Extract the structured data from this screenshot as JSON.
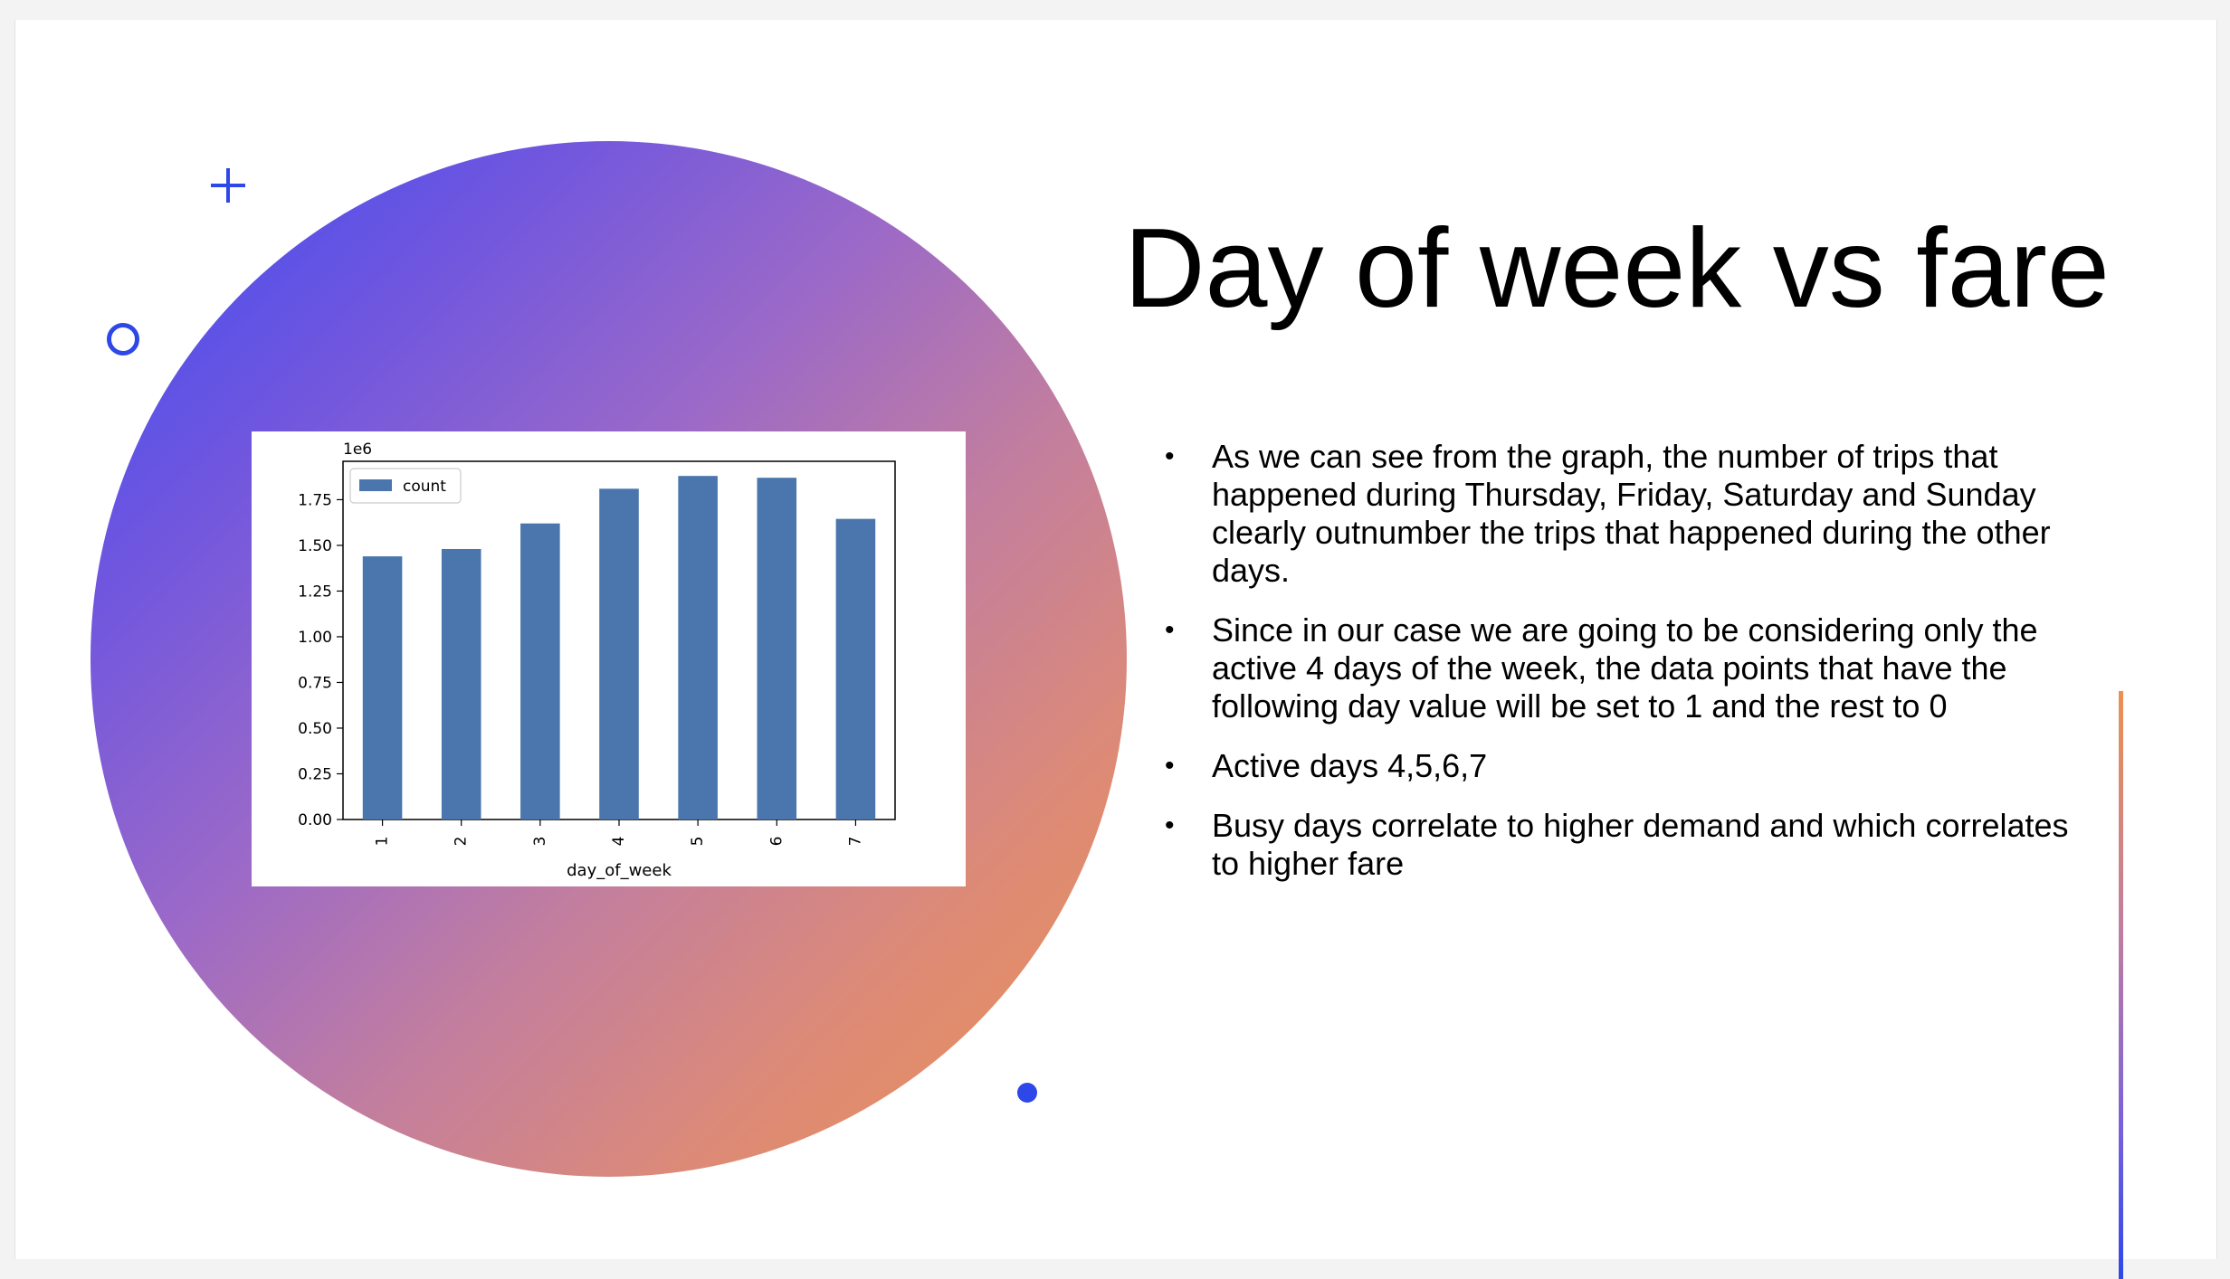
{
  "slide": {
    "title": "Day of week vs fare",
    "bullets": [
      "As we can see from the graph, the number of trips that happened during Thursday, Friday, Saturday and Sunday clearly outnumber the trips that happened during the other days.",
      "Since in our case we are going to be considering only the active 4 days of the week, the data points that have the following day value will be set to 1 and the rest to 0",
      "Active days 4,5,6,7",
      "Busy days correlate to higher demand and which correlates to higher fare"
    ],
    "bullet_glyph": "•"
  },
  "colors": {
    "accent_blue": "#2d47e8",
    "gradient_start": "#3b4cf2",
    "gradient_end": "#ec9050",
    "bar": "#4a76ad"
  },
  "chart_data": {
    "type": "bar",
    "categories": [
      "1",
      "2",
      "3",
      "4",
      "5",
      "6",
      "7"
    ],
    "values": [
      1.44,
      1.48,
      1.62,
      1.81,
      1.88,
      1.87,
      1.645
    ],
    "series": [
      {
        "name": "count",
        "values": [
          1.44,
          1.48,
          1.62,
          1.81,
          1.88,
          1.87,
          1.645
        ]
      }
    ],
    "scale_label": "1e6",
    "xlabel": "day_of_week",
    "ylabel": "",
    "yticks": [
      "0.00",
      "0.25",
      "0.50",
      "0.75",
      "1.00",
      "1.25",
      "1.50",
      "1.75"
    ],
    "ylim": [
      0,
      1.96
    ],
    "legend": "top-left",
    "grid": false
  }
}
